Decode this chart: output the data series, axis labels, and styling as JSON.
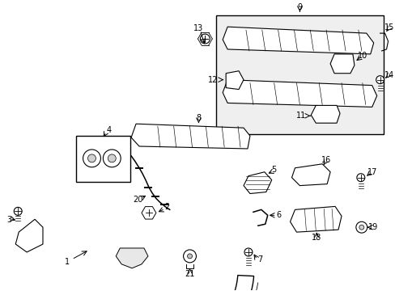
{
  "bg_color": "#ffffff",
  "box_color": "#f0f0f0",
  "line_color": "#000000",
  "fig_width": 4.89,
  "fig_height": 3.6,
  "dpi": 100
}
